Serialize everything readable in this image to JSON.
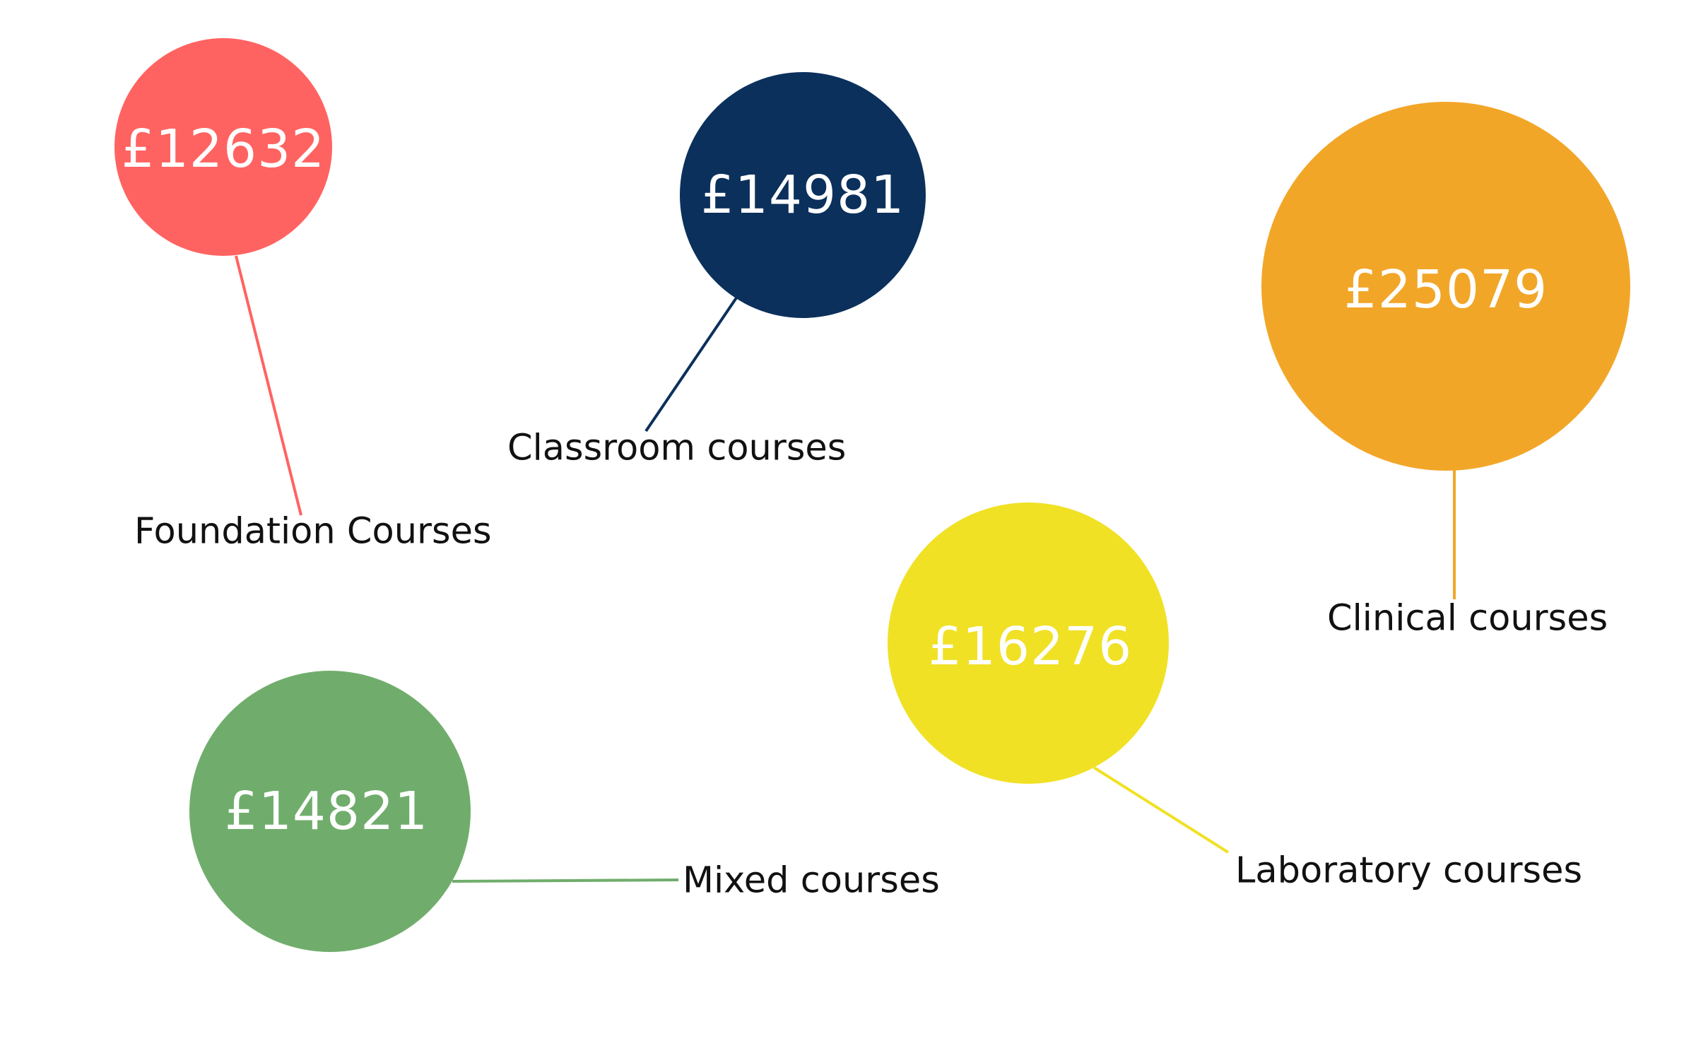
{
  "bubbles": [
    {
      "value": "£12632",
      "label": "Foundation Courses",
      "color": "#FF6361"
    },
    {
      "value": "£14981",
      "label": "Classroom courses",
      "color": "#0B305C"
    },
    {
      "value": "£25079",
      "label": "Clinical courses",
      "color": "#F2A628"
    },
    {
      "value": "£16276",
      "label": "Laboratory courses",
      "color": "#F0E125"
    },
    {
      "value": "£14821",
      "label": "Mixed courses",
      "color": "#70AD6C"
    }
  ]
}
